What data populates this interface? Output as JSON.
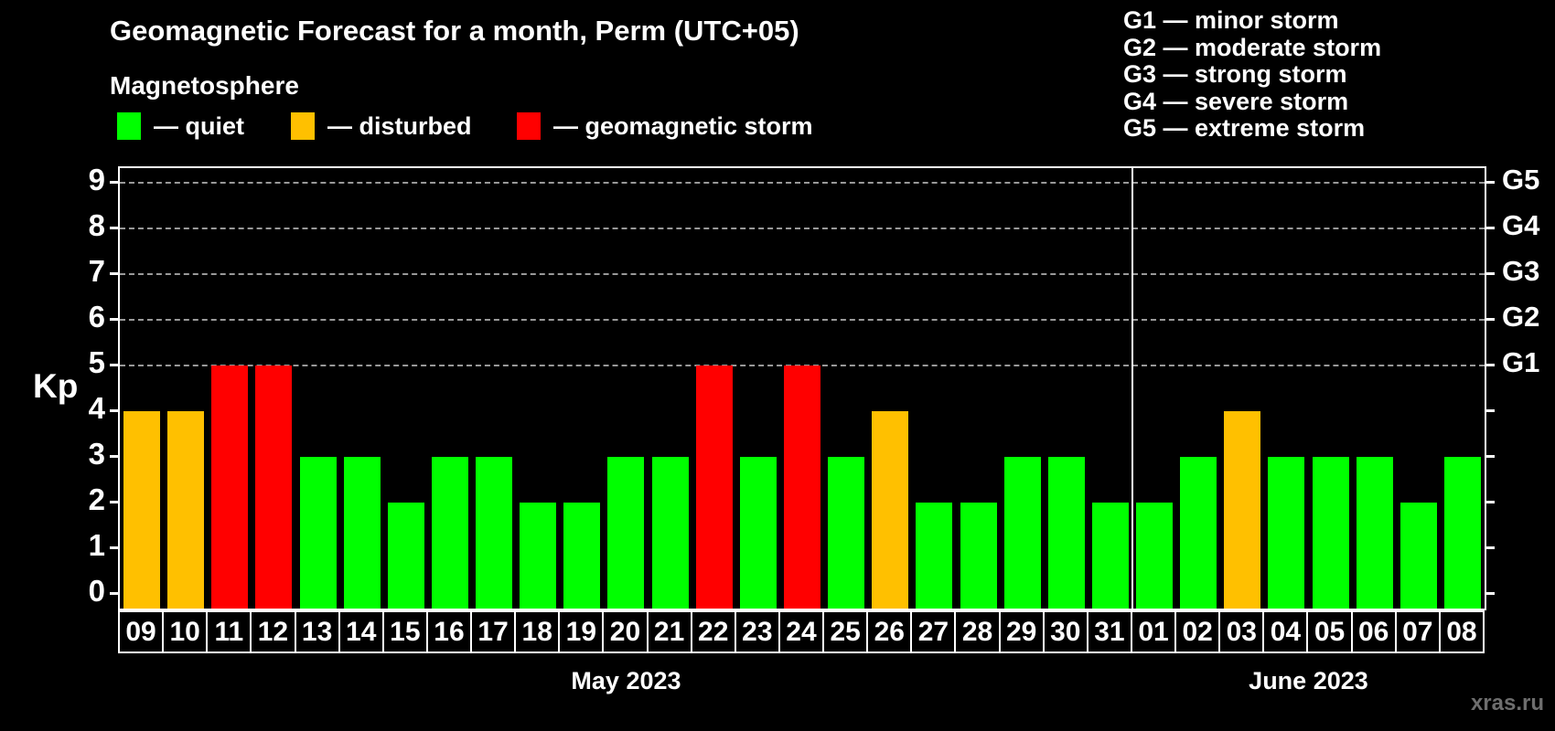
{
  "header": {
    "title": "Geomagnetic Forecast for a month, Perm (UTC+05)",
    "subtitle": "Magnetosphere"
  },
  "legend": {
    "items": [
      {
        "label": "— quiet",
        "color": "#00FF00",
        "status": "quiet"
      },
      {
        "label": "— disturbed",
        "color": "#FFC000",
        "status": "disturbed"
      },
      {
        "label": "— geomagnetic storm",
        "color": "#FF0000",
        "status": "storm"
      }
    ]
  },
  "g_legend": [
    "G1 — minor storm",
    "G2 — moderate storm",
    "G3 — strong storm",
    "G4 — severe storm",
    "G5 — extreme storm"
  ],
  "watermark": "xras.ru",
  "chart_data": {
    "type": "bar",
    "title": "Geomagnetic Forecast for a month, Perm (UTC+05)",
    "ylabel": "Kp",
    "ylim": [
      0,
      9
    ],
    "yticks": [
      0,
      1,
      2,
      3,
      4,
      5,
      6,
      7,
      8,
      9
    ],
    "gridlines_at": [
      5,
      6,
      7,
      8,
      9
    ],
    "grid": "dashed horizontal at Kp 5-9 only",
    "right_axis": [
      {
        "kp": 5,
        "label": "G1"
      },
      {
        "kp": 6,
        "label": "G2"
      },
      {
        "kp": 7,
        "label": "G3"
      },
      {
        "kp": 8,
        "label": "G4"
      },
      {
        "kp": 9,
        "label": "G5"
      }
    ],
    "months": [
      {
        "label": "May 2023",
        "days": 23
      },
      {
        "label": "June 2023",
        "days": 8
      }
    ],
    "categories": [
      "09",
      "10",
      "11",
      "12",
      "13",
      "14",
      "15",
      "16",
      "17",
      "18",
      "19",
      "20",
      "21",
      "22",
      "23",
      "24",
      "25",
      "26",
      "27",
      "28",
      "29",
      "30",
      "31",
      "01",
      "02",
      "03",
      "04",
      "05",
      "06",
      "07",
      "08"
    ],
    "values": [
      4,
      4,
      5,
      5,
      3,
      3,
      2,
      3,
      3,
      2,
      2,
      3,
      3,
      5,
      3,
      5,
      3,
      4,
      2,
      2,
      3,
      3,
      2,
      2,
      3,
      4,
      3,
      3,
      3,
      2,
      3
    ],
    "statuses": [
      "disturbed",
      "disturbed",
      "storm",
      "storm",
      "quiet",
      "quiet",
      "quiet",
      "quiet",
      "quiet",
      "quiet",
      "quiet",
      "quiet",
      "quiet",
      "storm",
      "quiet",
      "storm",
      "quiet",
      "disturbed",
      "quiet",
      "quiet",
      "quiet",
      "quiet",
      "quiet",
      "quiet",
      "quiet",
      "disturbed",
      "quiet",
      "quiet",
      "quiet",
      "quiet",
      "quiet"
    ],
    "colors": {
      "quiet": "#00FF00",
      "disturbed": "#FFC000",
      "storm": "#FF0000"
    }
  }
}
